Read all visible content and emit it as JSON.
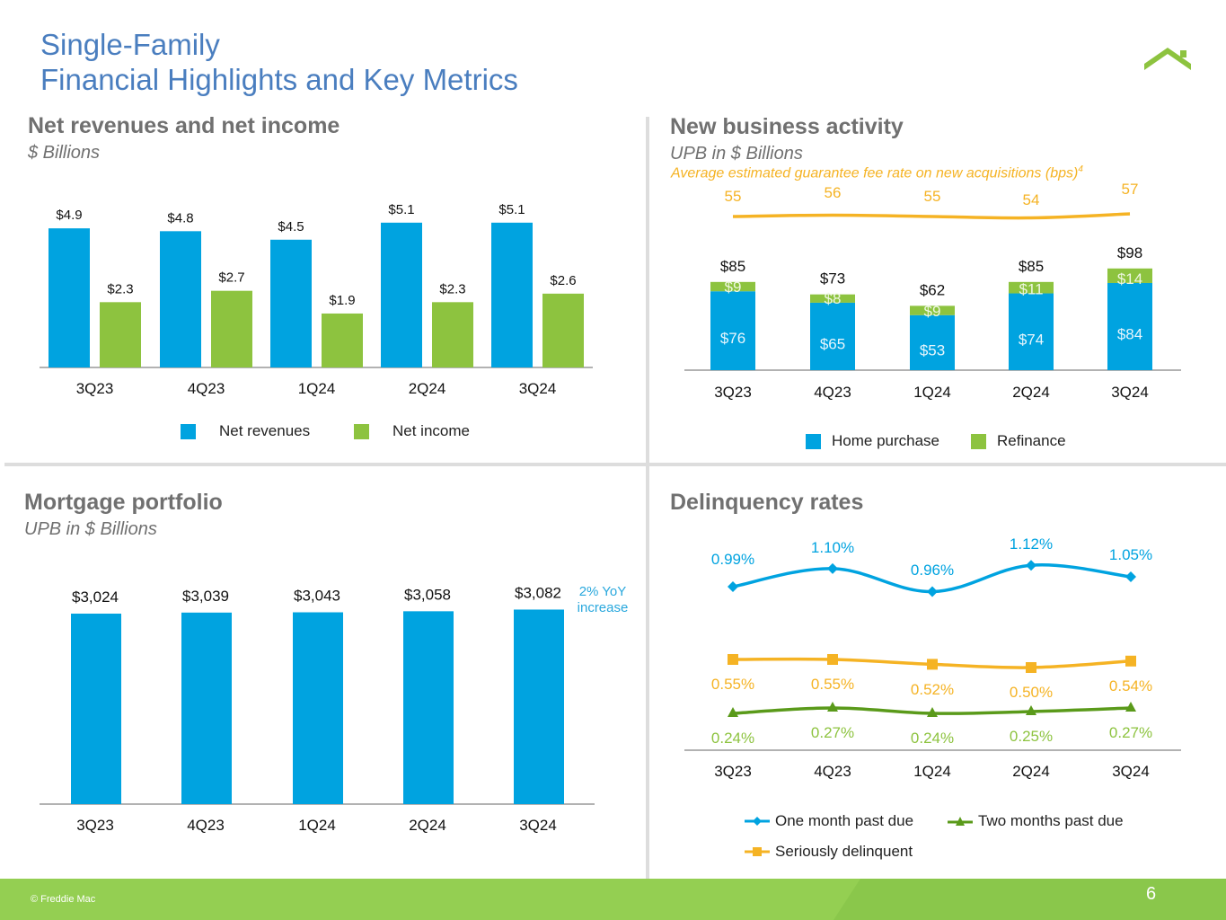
{
  "header": {
    "title_line1": "Single-Family",
    "title_line2": "Financial Highlights and Key Metrics",
    "logo_icon": "house-roof-icon"
  },
  "colors": {
    "blue": "#00a3e0",
    "green": "#8dc33f",
    "gold": "#f5b324",
    "dark_green": "#5a9a1a",
    "title_blue": "#4a7ebf",
    "footer_green": "#94cf52"
  },
  "footer": {
    "copyright": "© Freddie Mac",
    "page_number": "6"
  },
  "panels": {
    "net_revenues": {
      "title": "Net revenues and net income",
      "subtitle": "$ Billions"
    },
    "new_business": {
      "title": "New business activity",
      "subtitle": "UPB in $ Billions",
      "gfee_label": "Average estimated guarantee fee rate on new acquisitions (bps)",
      "gfee_footnote": "4"
    },
    "mortgage_portfolio": {
      "title": "Mortgage portfolio",
      "subtitle": "UPB in $ Billions",
      "annotation_line1": "2% YoY",
      "annotation_line2": "increase"
    },
    "delinquency": {
      "title": "Delinquency rates"
    }
  },
  "chart_data": [
    {
      "id": "net_revenues",
      "type": "bar",
      "title": "Net revenues and net income",
      "ylabel": "$ Billions",
      "categories": [
        "3Q23",
        "4Q23",
        "1Q24",
        "2Q24",
        "3Q24"
      ],
      "series": [
        {
          "name": "Net revenues",
          "values": [
            4.9,
            4.8,
            4.5,
            5.1,
            5.1
          ],
          "labels": [
            "$4.9",
            "$4.8",
            "$4.5",
            "$5.1",
            "$5.1"
          ],
          "color": "#00a3e0"
        },
        {
          "name": "Net income",
          "values": [
            2.3,
            2.7,
            1.9,
            2.3,
            2.6
          ],
          "labels": [
            "$2.3",
            "$2.7",
            "$1.9",
            "$2.3",
            "$2.6"
          ],
          "color": "#8dc33f"
        }
      ],
      "legend_position": "bottom",
      "grid": false
    },
    {
      "id": "new_business",
      "type": "bar",
      "stacked": true,
      "title": "New business activity",
      "ylabel": "UPB in $ Billions",
      "categories": [
        "3Q23",
        "4Q23",
        "1Q24",
        "2Q24",
        "3Q24"
      ],
      "series": [
        {
          "name": "Home purchase",
          "values": [
            76,
            65,
            53,
            74,
            84
          ],
          "labels": [
            "$76",
            "$65",
            "$53",
            "$74",
            "$84"
          ],
          "color": "#00a3e0"
        },
        {
          "name": "Refinance",
          "values": [
            9,
            8,
            9,
            11,
            14
          ],
          "labels": [
            "$9",
            "$8",
            "$9",
            "$11",
            "$14"
          ],
          "color": "#8dc33f"
        }
      ],
      "totals": [
        85,
        73,
        62,
        85,
        98
      ],
      "total_labels": [
        "$85",
        "$73",
        "$62",
        "$85",
        "$98"
      ],
      "overlay_line": {
        "name": "Average estimated guarantee fee rate on new acquisitions (bps)",
        "values": [
          55,
          56,
          55,
          54,
          57
        ],
        "labels": [
          "55",
          "56",
          "55",
          "54",
          "57"
        ],
        "color": "#f5b324"
      },
      "legend_position": "bottom",
      "grid": false
    },
    {
      "id": "mortgage_portfolio",
      "type": "bar",
      "title": "Mortgage portfolio",
      "ylabel": "UPB in $ Billions",
      "categories": [
        "3Q23",
        "4Q23",
        "1Q24",
        "2Q24",
        "3Q24"
      ],
      "series": [
        {
          "name": "Mortgage portfolio",
          "values": [
            3024,
            3039,
            3043,
            3058,
            3082
          ],
          "labels": [
            "$3,024",
            "$3,039",
            "$3,043",
            "$3,058",
            "$3,082"
          ],
          "color": "#00a3e0"
        }
      ],
      "annotation": "2% YoY increase",
      "grid": false
    },
    {
      "id": "delinquency",
      "type": "line",
      "title": "Delinquency rates",
      "categories": [
        "3Q23",
        "4Q23",
        "1Q24",
        "2Q24",
        "3Q24"
      ],
      "series": [
        {
          "name": "One month past due",
          "values": [
            0.99,
            1.1,
            0.96,
            1.12,
            1.05
          ],
          "labels": [
            "0.99%",
            "1.10%",
            "0.96%",
            "1.12%",
            "1.05%"
          ],
          "color": "#00a3e0",
          "marker": "diamond"
        },
        {
          "name": "Seriously delinquent",
          "values": [
            0.55,
            0.55,
            0.52,
            0.5,
            0.54
          ],
          "labels": [
            "0.55%",
            "0.55%",
            "0.52%",
            "0.50%",
            "0.54%"
          ],
          "color": "#f5b324",
          "marker": "square"
        },
        {
          "name": "Two months past due",
          "values": [
            0.24,
            0.27,
            0.24,
            0.25,
            0.27
          ],
          "labels": [
            "0.24%",
            "0.27%",
            "0.24%",
            "0.25%",
            "0.27%"
          ],
          "color": "#5a9a1a",
          "label_color": "#8dc33f",
          "marker": "triangle"
        }
      ],
      "legend_order": [
        "One month past due",
        "Two months past due",
        "Seriously delinquent"
      ],
      "legend_position": "bottom",
      "grid": false
    }
  ]
}
